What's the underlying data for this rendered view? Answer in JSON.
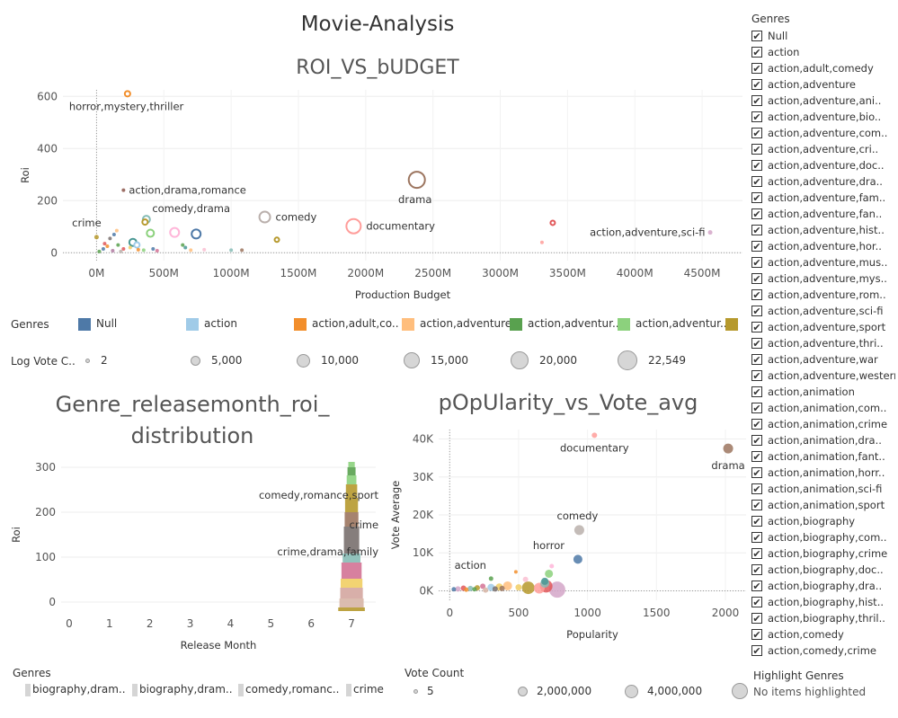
{
  "dashboard_title": "Movie-Analysis",
  "chart_data": [
    {
      "type": "scatter",
      "title": "ROI_VS_bUDGET",
      "xlabel": "Production Budget",
      "ylabel": "Roi",
      "xlim": [
        -250,
        4800
      ],
      "ylim": [
        -30,
        625
      ],
      "x_ticks": [
        "0M",
        "500M",
        "1000M",
        "1500M",
        "2000M",
        "2500M",
        "3000M",
        "3500M",
        "4000M",
        "4500M"
      ],
      "x_tick_values": [
        0,
        500,
        1000,
        1500,
        2000,
        2500,
        3000,
        3500,
        4000,
        4500
      ],
      "y_ticks": [
        "0",
        "200",
        "400",
        "600"
      ],
      "y_tick_values": [
        0,
        200,
        400,
        600
      ],
      "annotations": [
        {
          "text": "horror,mystery,thriller",
          "x": 230,
          "y": 610
        },
        {
          "text": "action,drama,romance",
          "x": 200,
          "y": 240
        },
        {
          "text": "crime",
          "x": 5,
          "y": 60
        },
        {
          "text": "comedy,drama",
          "x": 360,
          "y": 128
        },
        {
          "text": "comedy",
          "x": 1250,
          "y": 137
        },
        {
          "text": "drama",
          "x": 2380,
          "y": 280
        },
        {
          "text": "documentary",
          "x": 1910,
          "y": 102
        },
        {
          "text": "action,adventure,sci-fi",
          "x": 4560,
          "y": 78
        }
      ],
      "points": [
        {
          "x": 230,
          "y": 610,
          "r": 3,
          "color": "#f28e2b",
          "hollow": true
        },
        {
          "x": 200,
          "y": 240,
          "r": 2,
          "color": "#8c564b",
          "hollow": false
        },
        {
          "x": 2380,
          "y": 280,
          "r": 9,
          "color": "#9c755f",
          "hollow": true
        },
        {
          "x": 1910,
          "y": 102,
          "r": 8,
          "color": "#ff9d9a",
          "hollow": true
        },
        {
          "x": 1250,
          "y": 137,
          "r": 6,
          "color": "#bab0ac",
          "hollow": true
        },
        {
          "x": 370,
          "y": 128,
          "r": 4,
          "color": "#86bcb6",
          "hollow": true
        },
        {
          "x": 360,
          "y": 118,
          "r": 3,
          "color": "#b6992d",
          "hollow": true
        },
        {
          "x": 400,
          "y": 75,
          "r": 4,
          "color": "#8cd17d",
          "hollow": true
        },
        {
          "x": 580,
          "y": 78,
          "r": 5,
          "color": "#ffb6d9",
          "hollow": true
        },
        {
          "x": 740,
          "y": 72,
          "r": 5,
          "color": "#4e79a7",
          "hollow": true
        },
        {
          "x": 1340,
          "y": 50,
          "r": 2.5,
          "color": "#b6992d",
          "hollow": true
        },
        {
          "x": 3390,
          "y": 115,
          "r": 2.5,
          "color": "#e15759",
          "hollow": true
        },
        {
          "x": 3310,
          "y": 40,
          "r": 2,
          "color": "#ff9d9a",
          "hollow": false
        },
        {
          "x": 4560,
          "y": 78,
          "r": 2.5,
          "color": "#d4a6c8",
          "hollow": false
        },
        {
          "x": 0,
          "y": 60,
          "r": 2.5,
          "color": "#b6992d",
          "hollow": false
        },
        {
          "x": 130,
          "y": 70,
          "r": 2,
          "color": "#4e79a7",
          "hollow": false
        },
        {
          "x": 100,
          "y": 55,
          "r": 2,
          "color": "#79706e",
          "hollow": false
        },
        {
          "x": 150,
          "y": 85,
          "r": 2,
          "color": "#ffbe7d",
          "hollow": false
        },
        {
          "x": 160,
          "y": 30,
          "r": 2,
          "color": "#59a14f",
          "hollow": false
        },
        {
          "x": 270,
          "y": 40,
          "r": 4,
          "color": "#499894",
          "hollow": true
        },
        {
          "x": 300,
          "y": 30,
          "r": 3,
          "color": "#a0cbe8",
          "hollow": true
        },
        {
          "x": 250,
          "y": 20,
          "r": 2,
          "color": "#f1ce63",
          "hollow": false
        },
        {
          "x": 200,
          "y": 15,
          "r": 2,
          "color": "#e15759",
          "hollow": false
        },
        {
          "x": 50,
          "y": 15,
          "r": 2,
          "color": "#4e79a7",
          "hollow": false
        },
        {
          "x": 80,
          "y": 25,
          "r": 2,
          "color": "#f28e2b",
          "hollow": false
        },
        {
          "x": 20,
          "y": 5,
          "r": 2,
          "color": "#59a14f",
          "hollow": false
        },
        {
          "x": 350,
          "y": 10,
          "r": 2,
          "color": "#8cd17d",
          "hollow": false
        },
        {
          "x": 420,
          "y": 15,
          "r": 2,
          "color": "#4e79a7",
          "hollow": false
        },
        {
          "x": 450,
          "y": 8,
          "r": 2,
          "color": "#d37295",
          "hollow": false
        },
        {
          "x": 640,
          "y": 30,
          "r": 2,
          "color": "#59a14f",
          "hollow": false
        },
        {
          "x": 660,
          "y": 20,
          "r": 2,
          "color": "#499894",
          "hollow": false
        },
        {
          "x": 700,
          "y": 10,
          "r": 2,
          "color": "#ffbe7d",
          "hollow": false
        },
        {
          "x": 800,
          "y": 12,
          "r": 2,
          "color": "#fabfd2",
          "hollow": false
        },
        {
          "x": 1000,
          "y": 10,
          "r": 2,
          "color": "#86bcb6",
          "hollow": false
        },
        {
          "x": 1080,
          "y": 10,
          "r": 2,
          "color": "#9c755f",
          "hollow": false
        },
        {
          "x": 120,
          "y": 8,
          "r": 2,
          "color": "#b07aa1",
          "hollow": false
        },
        {
          "x": 180,
          "y": 5,
          "r": 2,
          "color": "#bab0ac",
          "hollow": false
        },
        {
          "x": 310,
          "y": 12,
          "r": 2,
          "color": "#f28e2b",
          "hollow": false
        },
        {
          "x": 60,
          "y": 35,
          "r": 2,
          "color": "#e15759",
          "hollow": false
        }
      ]
    },
    {
      "type": "bar",
      "title": "Genre_releasemonth_roi_ distribution",
      "title_lines": [
        "Genre_releasemonth_roi_",
        "distribution"
      ],
      "xlabel": "Release Month",
      "ylabel": "Roi",
      "xlim": [
        -0.2,
        7.6
      ],
      "ylim": [
        -20,
        320
      ],
      "x_ticks": [
        "0",
        "1",
        "2",
        "3",
        "4",
        "5",
        "6",
        "7"
      ],
      "x_tick_values": [
        0,
        1,
        2,
        3,
        4,
        5,
        6,
        7
      ],
      "y_ticks": [
        "0",
        "100",
        "200",
        "300"
      ],
      "y_tick_values": [
        0,
        100,
        200,
        300
      ],
      "month": 7,
      "stacked_segments": [
        {
          "y0": -20,
          "y1": -12,
          "halfwidth": 0.33,
          "color": "#b6992d"
        },
        {
          "y0": -12,
          "y1": 8,
          "halfwidth": 0.3,
          "color": "#d7b5a6"
        },
        {
          "y0": 8,
          "y1": 32,
          "halfwidth": 0.28,
          "color": "#d4a6a0"
        },
        {
          "y0": 32,
          "y1": 52,
          "halfwidth": 0.27,
          "color": "#f1ce63"
        },
        {
          "y0": 52,
          "y1": 88,
          "halfwidth": 0.25,
          "color": "#d37295"
        },
        {
          "y0": 88,
          "y1": 108,
          "halfwidth": 0.22,
          "color": "#86bcb6"
        },
        {
          "y0": 108,
          "y1": 168,
          "halfwidth": 0.19,
          "color": "#79706e"
        },
        {
          "y0": 168,
          "y1": 200,
          "halfwidth": 0.17,
          "color": "#9c755f"
        },
        {
          "y0": 200,
          "y1": 232,
          "halfwidth": 0.16,
          "color": "#b6992d"
        },
        {
          "y0": 232,
          "y1": 262,
          "halfwidth": 0.14,
          "color": "#b6992d"
        },
        {
          "y0": 262,
          "y1": 282,
          "halfwidth": 0.12,
          "color": "#8cd17d"
        },
        {
          "y0": 282,
          "y1": 300,
          "halfwidth": 0.1,
          "color": "#59a14f"
        },
        {
          "y0": 300,
          "y1": 312,
          "halfwidth": 0.08,
          "color": "#8cd17d"
        }
      ],
      "annotations": [
        {
          "text": "comedy,romance,sport",
          "y": 238
        },
        {
          "text": "crime",
          "y": 172
        },
        {
          "text": "crime,drama,family",
          "y": 112
        }
      ]
    },
    {
      "type": "scatter",
      "title": "pOpUlarity_vs_Vote_avg",
      "xlabel": "Popularity",
      "ylabel": "Vote Average",
      "xlim": [
        -80,
        2150
      ],
      "ylim": [
        -2500,
        42500
      ],
      "x_ticks": [
        "0",
        "500",
        "1000",
        "1500",
        "2000"
      ],
      "x_tick_values": [
        0,
        500,
        1000,
        1500,
        2000
      ],
      "y_ticks": [
        "0K",
        "10K",
        "20K",
        "30K",
        "40K"
      ],
      "y_tick_values": [
        0,
        10000,
        20000,
        30000,
        40000
      ],
      "annotations": [
        {
          "text": "documentary",
          "x": 1050,
          "y": 41000
        },
        {
          "text": "drama",
          "x": 2020,
          "y": 37500
        },
        {
          "text": "comedy",
          "x": 940,
          "y": 16000
        },
        {
          "text": "horror",
          "x": 940,
          "y": 8600
        },
        {
          "text": "action",
          "x": 150,
          "y": 2500
        }
      ],
      "points": [
        {
          "x": 1050,
          "y": 41000,
          "r": 3,
          "color": "#ff9d9a"
        },
        {
          "x": 2020,
          "y": 37500,
          "r": 5.5,
          "color": "#9c755f"
        },
        {
          "x": 940,
          "y": 16000,
          "r": 5.5,
          "color": "#bab0ac"
        },
        {
          "x": 930,
          "y": 8300,
          "r": 5,
          "color": "#4e79a7"
        },
        {
          "x": 780,
          "y": 300,
          "r": 9,
          "color": "#d4a6c8"
        },
        {
          "x": 570,
          "y": 800,
          "r": 7,
          "color": "#b6992d"
        },
        {
          "x": 700,
          "y": 1200,
          "r": 7,
          "color": "#e15759"
        },
        {
          "x": 650,
          "y": 700,
          "r": 6,
          "color": "#ff9d9a"
        },
        {
          "x": 690,
          "y": 2000,
          "r": 5,
          "color": "#86bcb6"
        },
        {
          "x": 720,
          "y": 4500,
          "r": 4.5,
          "color": "#8cd17d"
        },
        {
          "x": 690,
          "y": 2500,
          "r": 4,
          "color": "#499894"
        },
        {
          "x": 740,
          "y": 6500,
          "r": 2.5,
          "color": "#ffb6d9"
        },
        {
          "x": 550,
          "y": 3000,
          "r": 3,
          "color": "#fabfd2"
        },
        {
          "x": 480,
          "y": 5000,
          "r": 2,
          "color": "#f28e2b"
        },
        {
          "x": 300,
          "y": 3200,
          "r": 2.5,
          "color": "#59a14f"
        },
        {
          "x": 420,
          "y": 1300,
          "r": 5,
          "color": "#ffbe7d"
        },
        {
          "x": 360,
          "y": 1000,
          "r": 4,
          "color": "#f1ce63"
        },
        {
          "x": 300,
          "y": 900,
          "r": 4,
          "color": "#a0cbe8"
        },
        {
          "x": 240,
          "y": 1200,
          "r": 3,
          "color": "#d37295"
        },
        {
          "x": 200,
          "y": 800,
          "r": 3,
          "color": "#b6992d"
        },
        {
          "x": 150,
          "y": 600,
          "r": 3,
          "color": "#86bcb6"
        },
        {
          "x": 100,
          "y": 700,
          "r": 3,
          "color": "#e15759"
        },
        {
          "x": 60,
          "y": 500,
          "r": 3,
          "color": "#d4a6c8"
        },
        {
          "x": 30,
          "y": 400,
          "r": 2.5,
          "color": "#4e79a7"
        },
        {
          "x": 330,
          "y": 500,
          "r": 3,
          "color": "#79706e"
        },
        {
          "x": 380,
          "y": 600,
          "r": 3,
          "color": "#9c755f"
        },
        {
          "x": 120,
          "y": 300,
          "r": 2.5,
          "color": "#f28e2b"
        },
        {
          "x": 180,
          "y": 400,
          "r": 2.5,
          "color": "#59a14f"
        },
        {
          "x": 260,
          "y": 200,
          "r": 3,
          "color": "#d7b5a6"
        },
        {
          "x": 500,
          "y": 900,
          "r": 3.5,
          "color": "#f1ce63"
        }
      ]
    }
  ],
  "legend_genres_top": {
    "title": "Genres",
    "items": [
      {
        "label": "Null",
        "color": "#4e79a7"
      },
      {
        "label": "action",
        "color": "#a0cbe8"
      },
      {
        "label": "action,adult,co..",
        "color": "#f28e2b"
      },
      {
        "label": "action,adventure",
        "color": "#ffbe7d"
      },
      {
        "label": "action,adventur..",
        "color": "#59a14f"
      },
      {
        "label": "action,adventur..",
        "color": "#8cd17d"
      },
      {
        "label": "a",
        "color": "#b6992d"
      }
    ]
  },
  "legend_log_vote": {
    "title": "Log Vote C..",
    "items": [
      {
        "label": "2",
        "r": 1.5
      },
      {
        "label": "5,000",
        "r": 4.5
      },
      {
        "label": "10,000",
        "r": 6.5
      },
      {
        "label": "15,000",
        "r": 8
      },
      {
        "label": "20,000",
        "r": 9
      },
      {
        "label": "22,549",
        "r": 10
      }
    ]
  },
  "legend_genres_bottom": {
    "title": "Genres",
    "items": [
      "biography,dram..",
      "biography,dram..",
      "comedy,romanc..",
      "crime"
    ]
  },
  "legend_vote_count": {
    "title": "Vote Count",
    "items": [
      {
        "label": "5",
        "r": 1.5
      },
      {
        "label": "2,000,000",
        "r": 4.5
      },
      {
        "label": "4,000,000",
        "r": 6.5
      },
      {
        "label": "",
        "r": 8
      }
    ]
  },
  "highlight": {
    "title": "Highlight Genres",
    "placeholder": "No items highlighted"
  },
  "genre_filter": {
    "title": "Genres",
    "items": [
      "Null",
      "action",
      "action,adult,comedy",
      "action,adventure",
      "action,adventure,ani..",
      "action,adventure,bio..",
      "action,adventure,com..",
      "action,adventure,cri..",
      "action,adventure,doc..",
      "action,adventure,dra..",
      "action,adventure,fam..",
      "action,adventure,fan..",
      "action,adventure,hist..",
      "action,adventure,hor..",
      "action,adventure,mus..",
      "action,adventure,mys..",
      "action,adventure,rom..",
      "action,adventure,sci-fi",
      "action,adventure,sport",
      "action,adventure,thri..",
      "action,adventure,war",
      "action,adventure,western",
      "action,animation",
      "action,animation,com..",
      "action,animation,crime",
      "action,animation,dra..",
      "action,animation,fant..",
      "action,animation,horr..",
      "action,animation,sci-fi",
      "action,animation,sport",
      "action,biography",
      "action,biography,com..",
      "action,biography,crime",
      "action,biography,doc..",
      "action,biography,dra..",
      "action,biography,hist..",
      "action,biography,thril..",
      "action,comedy",
      "action,comedy,crime"
    ]
  }
}
